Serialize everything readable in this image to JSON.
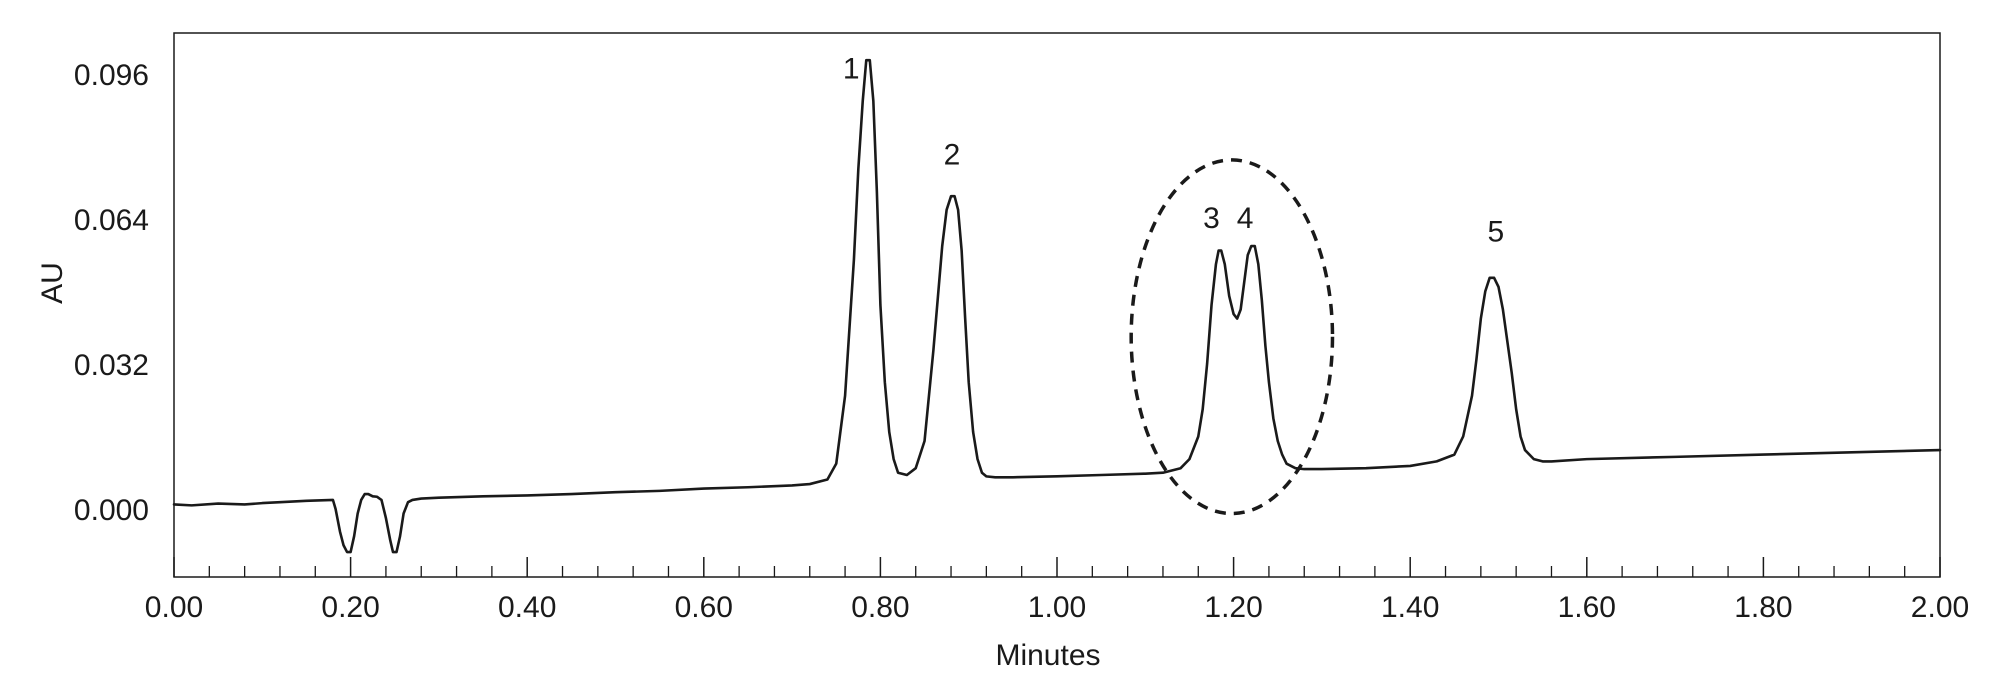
{
  "chart_data": {
    "type": "line",
    "xlabel": "Minutes",
    "ylabel": "AU",
    "xlim": [
      0.0,
      2.0
    ],
    "ylim": [
      -0.015,
      0.105
    ],
    "x_ticks": [
      "0.00",
      "0.20",
      "0.40",
      "0.60",
      "0.80",
      "1.00",
      "1.20",
      "1.40",
      "1.60",
      "1.80",
      "2.00"
    ],
    "x_tick_values": [
      0.0,
      0.2,
      0.4,
      0.6,
      0.8,
      1.0,
      1.2,
      1.4,
      1.6,
      1.8,
      2.0
    ],
    "x_minor_step": 0.04,
    "y_ticks": [
      "0.000",
      "0.032",
      "0.064",
      "0.096"
    ],
    "y_tick_values": [
      0.0,
      0.032,
      0.064,
      0.096
    ],
    "grid": false,
    "line_color": "#1a1a1a",
    "series": [
      {
        "x": [
          0.0,
          0.02,
          0.05,
          0.08,
          0.1,
          0.12,
          0.15,
          0.18,
          0.183,
          0.188,
          0.192,
          0.196,
          0.2,
          0.204,
          0.208,
          0.212,
          0.216,
          0.22,
          0.225,
          0.23,
          0.235,
          0.24,
          0.245,
          0.248,
          0.252,
          0.256,
          0.26,
          0.265,
          0.27,
          0.28,
          0.3,
          0.35,
          0.4,
          0.45,
          0.5,
          0.55,
          0.6,
          0.65,
          0.7,
          0.72,
          0.74,
          0.75,
          0.76,
          0.77,
          0.775,
          0.78,
          0.784,
          0.788,
          0.792,
          0.796,
          0.8,
          0.805,
          0.81,
          0.815,
          0.82,
          0.83,
          0.84,
          0.85,
          0.86,
          0.87,
          0.875,
          0.88,
          0.884,
          0.888,
          0.892,
          0.896,
          0.9,
          0.905,
          0.91,
          0.915,
          0.92,
          0.93,
          0.95,
          1.0,
          1.05,
          1.1,
          1.12,
          1.14,
          1.15,
          1.16,
          1.165,
          1.17,
          1.175,
          1.18,
          1.183,
          1.186,
          1.19,
          1.195,
          1.2,
          1.204,
          1.208,
          1.212,
          1.216,
          1.22,
          1.224,
          1.228,
          1.232,
          1.236,
          1.24,
          1.245,
          1.25,
          1.255,
          1.26,
          1.27,
          1.28,
          1.3,
          1.35,
          1.4,
          1.43,
          1.45,
          1.46,
          1.47,
          1.475,
          1.48,
          1.485,
          1.49,
          1.495,
          1.5,
          1.505,
          1.51,
          1.515,
          1.52,
          1.525,
          1.53,
          1.54,
          1.55,
          1.56,
          1.6,
          1.7,
          1.8,
          1.9,
          2.0
        ],
        "y": [
          0.001,
          0.0008,
          0.0012,
          0.001,
          0.0013,
          0.0015,
          0.0018,
          0.002,
          0.0,
          -0.005,
          -0.008,
          -0.0095,
          -0.0095,
          -0.006,
          -0.001,
          0.002,
          0.0033,
          0.0033,
          0.0028,
          0.0027,
          0.002,
          -0.002,
          -0.007,
          -0.0095,
          -0.0095,
          -0.006,
          -0.001,
          0.0015,
          0.002,
          0.0023,
          0.0025,
          0.0028,
          0.003,
          0.0033,
          0.0037,
          0.004,
          0.0045,
          0.0048,
          0.0052,
          0.0055,
          0.0065,
          0.01,
          0.025,
          0.055,
          0.075,
          0.09,
          0.099,
          0.099,
          0.09,
          0.07,
          0.045,
          0.028,
          0.017,
          0.011,
          0.008,
          0.0075,
          0.009,
          0.015,
          0.035,
          0.058,
          0.066,
          0.069,
          0.069,
          0.066,
          0.057,
          0.042,
          0.028,
          0.017,
          0.011,
          0.008,
          0.0072,
          0.007,
          0.007,
          0.0072,
          0.0075,
          0.0078,
          0.008,
          0.009,
          0.011,
          0.016,
          0.022,
          0.032,
          0.045,
          0.054,
          0.057,
          0.057,
          0.054,
          0.047,
          0.043,
          0.042,
          0.044,
          0.05,
          0.056,
          0.058,
          0.058,
          0.054,
          0.046,
          0.036,
          0.028,
          0.02,
          0.015,
          0.012,
          0.01,
          0.009,
          0.0088,
          0.0088,
          0.009,
          0.0095,
          0.0105,
          0.012,
          0.016,
          0.025,
          0.033,
          0.042,
          0.048,
          0.051,
          0.051,
          0.049,
          0.044,
          0.037,
          0.03,
          0.022,
          0.016,
          0.013,
          0.011,
          0.0105,
          0.0105,
          0.011,
          0.0115,
          0.012,
          0.0125,
          0.013
        ]
      }
    ],
    "annotations": [
      {
        "text": "1",
        "x": 0.767,
        "y": 0.095
      },
      {
        "text": "2",
        "x": 0.881,
        "y": 0.076
      },
      {
        "text": "3",
        "x": 1.175,
        "y": 0.062
      },
      {
        "text": "4",
        "x": 1.213,
        "y": 0.062
      },
      {
        "text": "5",
        "x": 1.497,
        "y": 0.059
      }
    ],
    "highlight": {
      "shape": "ellipse",
      "style": "dashed",
      "cx": 1.198,
      "cy": 0.038,
      "rx": 0.114,
      "ry": 0.039
    }
  }
}
